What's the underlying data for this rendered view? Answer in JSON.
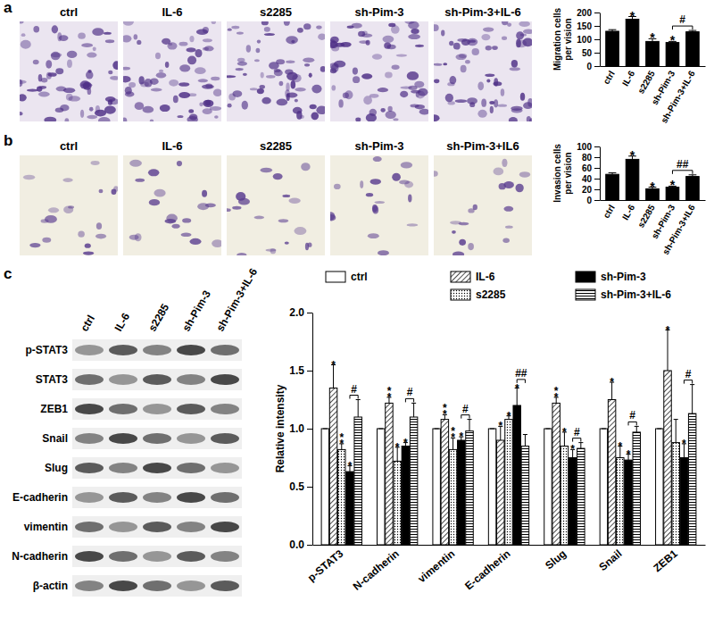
{
  "chart_data": [
    {
      "type": "bar",
      "ylabel": "Migration cells per vision",
      "categories": [
        "ctrl",
        "IL-6",
        "s2285",
        "sh-Pim-3",
        "sh-Pim-3+IL-6"
      ],
      "values": [
        130,
        175,
        92,
        88,
        128
      ],
      "errors": [
        6,
        10,
        10,
        4,
        5
      ],
      "significance": [
        null,
        "*",
        "*",
        "*",
        null
      ],
      "comparison": {
        "between": [
          "sh-Pim-3",
          "sh-Pim-3+IL-6"
        ],
        "label": "#"
      },
      "color": "#000000",
      "ylim": [
        0,
        200
      ],
      "yticks": [
        0,
        50,
        100,
        150,
        200
      ]
    },
    {
      "type": "bar",
      "ylabel": "Invasion cells per vision",
      "categories": [
        "ctrl",
        "IL-6",
        "s2285",
        "sh-Pim-3",
        "sh-Pim-3+IL6"
      ],
      "values": [
        48,
        76,
        21,
        24,
        44
      ],
      "errors": [
        3,
        6,
        3,
        2,
        3
      ],
      "significance": [
        null,
        "*",
        "*",
        "*",
        null
      ],
      "comparison": {
        "between": [
          "sh-Pim-3",
          "sh-Pim-3+IL6"
        ],
        "label": "##"
      },
      "color": "#000000",
      "ylim": [
        0,
        100
      ],
      "yticks": [
        0,
        20,
        40,
        60,
        80,
        100
      ]
    },
    {
      "type": "bar",
      "ylabel": "Relative intensity",
      "categories": [
        "p-STAT3",
        "N-cadherin",
        "vimentin",
        "E-cadherin",
        "Slug",
        "Snail",
        "ZEB1"
      ],
      "series": [
        {
          "name": "ctrl",
          "color": "#ffffff",
          "values": [
            1,
            1,
            1,
            1,
            1,
            1,
            1
          ],
          "errors": [
            0,
            0,
            0,
            0,
            0,
            0,
            0
          ]
        },
        {
          "name": "IL-6",
          "color": "#ffffff",
          "values": [
            1.35,
            1.22,
            1.08,
            0.9,
            1.22,
            1.25,
            1.5
          ],
          "errors": [
            0.2,
            0.05,
            0.04,
            0.12,
            0.05,
            0.15,
            0.35
          ],
          "significance": [
            "*",
            "**",
            "**",
            "*",
            "**",
            "*",
            "*"
          ]
        },
        {
          "name": "s2285",
          "color": "#ffffff",
          "values": [
            0.82,
            0.72,
            0.82,
            1.08,
            0.85,
            0.75,
            0.88
          ],
          "errors": [
            0.05,
            0.12,
            0.1,
            0.03,
            0.12,
            0.1,
            0.2
          ],
          "significance": [
            "**",
            "*",
            "**",
            "*",
            "*",
            "*",
            null
          ]
        },
        {
          "name": "sh-Pim-3",
          "color": "#000000",
          "values": [
            0.63,
            0.85,
            0.9,
            1.2,
            0.75,
            0.73,
            0.75
          ],
          "errors": [
            0.05,
            0.03,
            0.03,
            0.15,
            0.07,
            0.05,
            0.12
          ],
          "significance": [
            "*",
            "*",
            "*",
            "*",
            "*",
            "*",
            "*"
          ]
        },
        {
          "name": "sh-Pim-3+IL-6",
          "color": "#ffffff",
          "values": [
            1.1,
            1.1,
            0.98,
            0.85,
            0.83,
            0.97,
            1.13
          ],
          "errors": [
            0.15,
            0.12,
            0.1,
            0.1,
            0.05,
            0.05,
            0.25
          ]
        }
      ],
      "comparisons": {
        "between": [
          "sh-Pim-3",
          "sh-Pim-3+IL-6"
        ],
        "labels": [
          "#",
          "#",
          "#",
          "##",
          "#",
          "#",
          "#"
        ]
      },
      "legend": "top",
      "ylim": [
        0,
        2
      ],
      "yticks": [
        {
          "value": 0,
          "label": "0.0"
        },
        {
          "value": 0.5,
          "label": "0.5"
        },
        {
          "value": 1,
          "label": "1.0"
        },
        {
          "value": 1.5,
          "label": "1.5"
        },
        {
          "value": 2,
          "label": "2.0"
        }
      ]
    }
  ],
  "figure": {
    "panel_labels": [
      "a",
      "b",
      "c"
    ],
    "image_rows": [
      {
        "titles": [
          "ctrl",
          "IL-6",
          "s2285",
          "sh-Pim-3",
          "sh-Pim-3+IL-6"
        ]
      },
      {
        "titles": [
          "ctrl",
          "IL-6",
          "s2285",
          "sh-Pim-3",
          "sh-Pim-3+IL6"
        ]
      }
    ],
    "blot": {
      "lanes": [
        "ctrl",
        "IL-6",
        "s2285",
        "sh-Pim-3",
        "sh-Pim-3+IL-6"
      ],
      "proteins": [
        "p-STAT3",
        "STAT3",
        "ZEB1",
        "Snail",
        "Slug",
        "E-cadherin",
        "vimentin",
        "N-cadherin",
        "β-actin"
      ]
    }
  }
}
